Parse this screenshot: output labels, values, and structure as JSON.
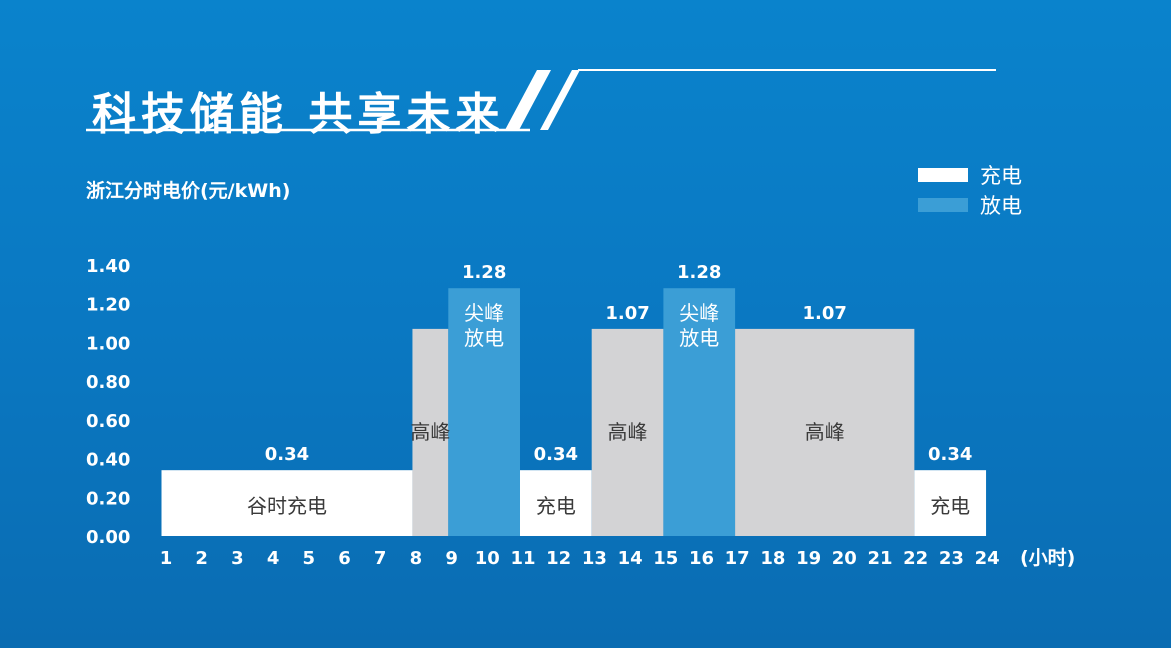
{
  "header": {
    "title": "科技储能 共享未来"
  },
  "legend": {
    "items": [
      {
        "label": "充电",
        "color": "#ffffff"
      },
      {
        "label": "放电",
        "color": "#3b9ed6"
      }
    ]
  },
  "chart_data": {
    "type": "bar",
    "title": "浙江分时电价(元/kWh)",
    "xlabel": "(小时)",
    "ylabel": "",
    "ylim": [
      0,
      1.4
    ],
    "yticks": [
      "0.00",
      "0.20",
      "0.40",
      "0.60",
      "0.80",
      "1.00",
      "1.20",
      "1.40"
    ],
    "xticks": [
      "1",
      "2",
      "3",
      "4",
      "5",
      "6",
      "7",
      "8",
      "9",
      "10",
      "11",
      "12",
      "13",
      "14",
      "15",
      "16",
      "17",
      "18",
      "19",
      "20",
      "21",
      "22",
      "23",
      "24"
    ],
    "grid": false,
    "legend_position": "top-right",
    "colors": {
      "charge": "#ffffff",
      "discharge": "#3b9ed6",
      "peak": "#d3d3d5"
    },
    "segments": [
      {
        "start": 1,
        "end": 8,
        "value": 0.34,
        "value_label": "0.34",
        "kind": "charge",
        "label": "谷时充电"
      },
      {
        "start": 8,
        "end": 9,
        "value": 1.07,
        "value_label": "",
        "kind": "peak",
        "label": "高峰"
      },
      {
        "start": 9,
        "end": 11,
        "value": 1.28,
        "value_label": "1.28",
        "kind": "discharge",
        "label": "尖峰\n放电"
      },
      {
        "start": 11,
        "end": 13,
        "value": 0.34,
        "value_label": "0.34",
        "kind": "charge",
        "label": "充电"
      },
      {
        "start": 13,
        "end": 15,
        "value": 1.07,
        "value_label": "1.07",
        "kind": "peak",
        "label": "高峰"
      },
      {
        "start": 15,
        "end": 17,
        "value": 1.28,
        "value_label": "1.28",
        "kind": "discharge",
        "label": "尖峰\n放电"
      },
      {
        "start": 17,
        "end": 22,
        "value": 1.07,
        "value_label": "1.07",
        "kind": "peak",
        "label": "高峰"
      },
      {
        "start": 22,
        "end": 24,
        "value": 0.34,
        "value_label": "0.34",
        "kind": "charge",
        "label": "充电"
      }
    ]
  }
}
